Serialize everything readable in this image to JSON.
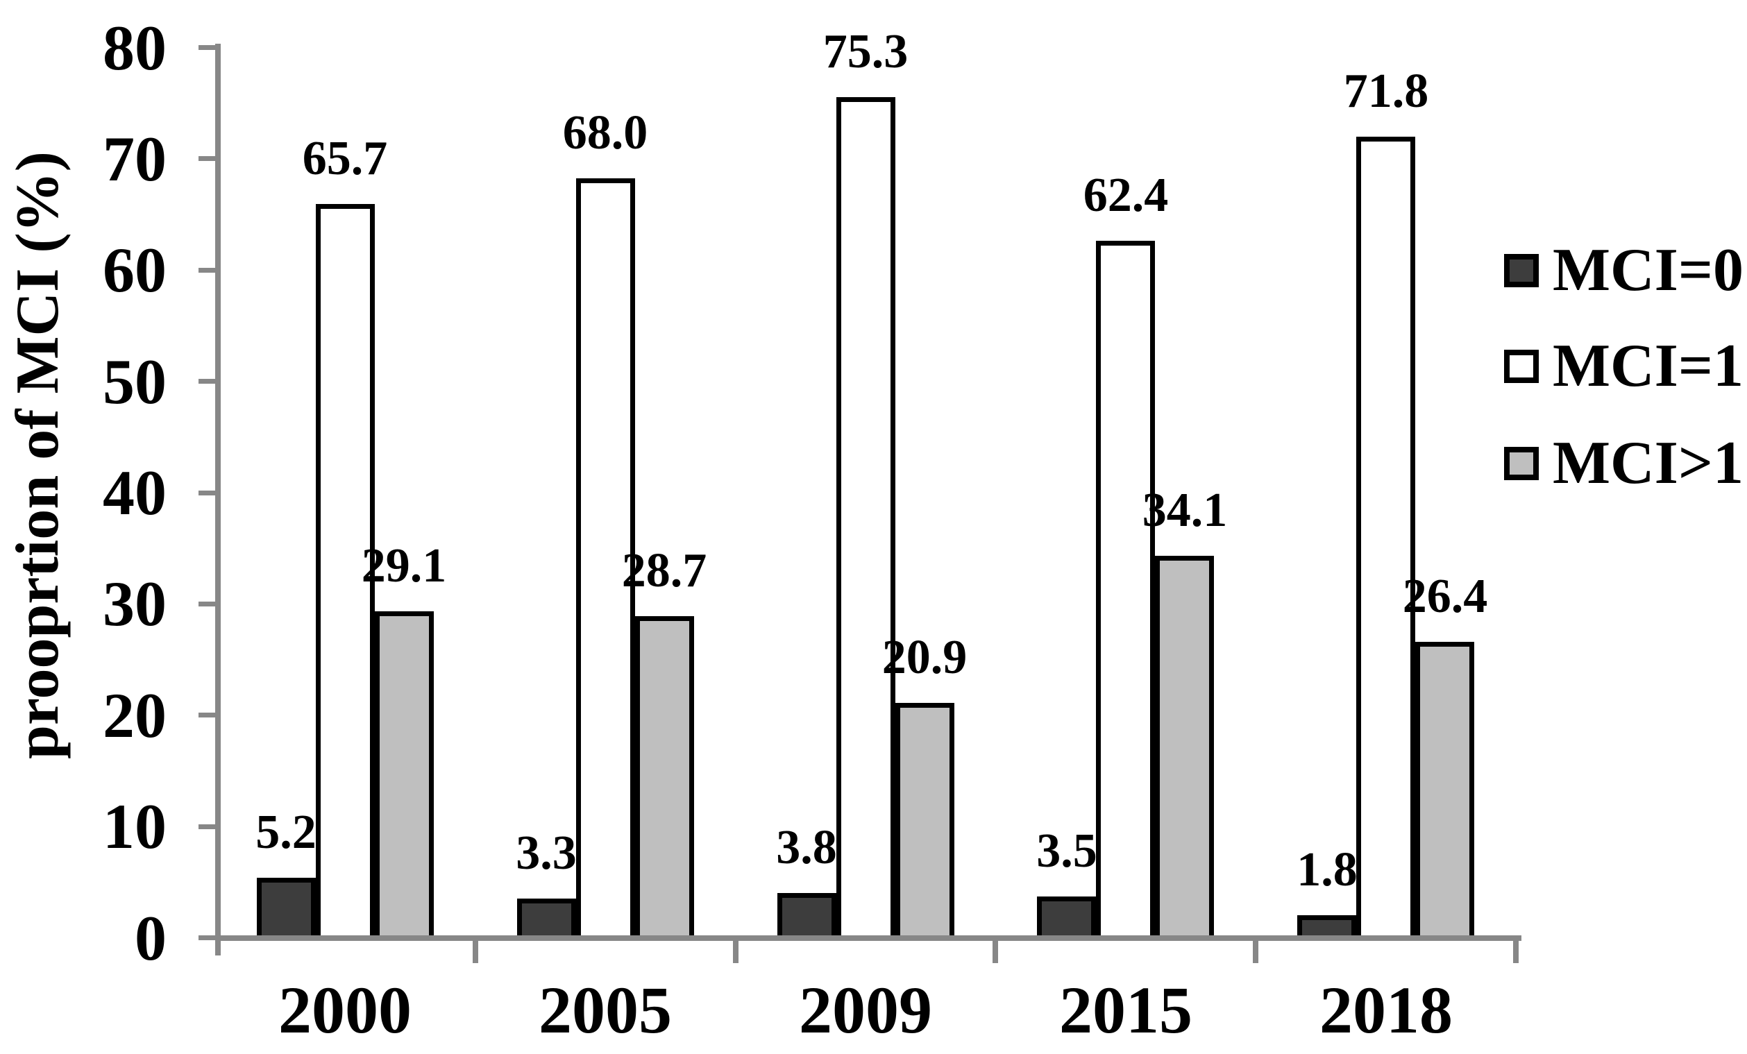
{
  "chart_data": {
    "type": "bar",
    "title": "",
    "ylabel": "prooprtion of MCI (%)",
    "xlabel": "",
    "ylim": [
      0,
      80
    ],
    "yticks": [
      0,
      10,
      20,
      30,
      40,
      50,
      60,
      70,
      80
    ],
    "categories": [
      "2000",
      "2005",
      "2009",
      "2015",
      "2018"
    ],
    "series": [
      {
        "name": "MCI=0",
        "fill": "#3d3d3d",
        "values": [
          5.2,
          3.3,
          3.8,
          3.5,
          1.8
        ],
        "labels": [
          "5.2",
          "3.3",
          "3.8",
          "3.5",
          "1.8"
        ]
      },
      {
        "name": "MCI=1",
        "fill": "#ffffff",
        "values": [
          65.7,
          68.0,
          75.3,
          62.4,
          71.8
        ],
        "labels": [
          "65.7",
          "68.0",
          "75.3",
          "62.4",
          "71.8"
        ]
      },
      {
        "name": "MCI>1",
        "fill": "#bfbfbf",
        "values": [
          29.1,
          28.7,
          20.9,
          34.1,
          26.4
        ],
        "labels": [
          "29.1",
          "28.7",
          "20.9",
          "34.1",
          "26.4"
        ]
      }
    ],
    "legend_position": "right",
    "grid": false,
    "colors": {
      "axis": "#878787",
      "bar_border": "#000000",
      "text": "#000000",
      "background": "#ffffff"
    }
  }
}
